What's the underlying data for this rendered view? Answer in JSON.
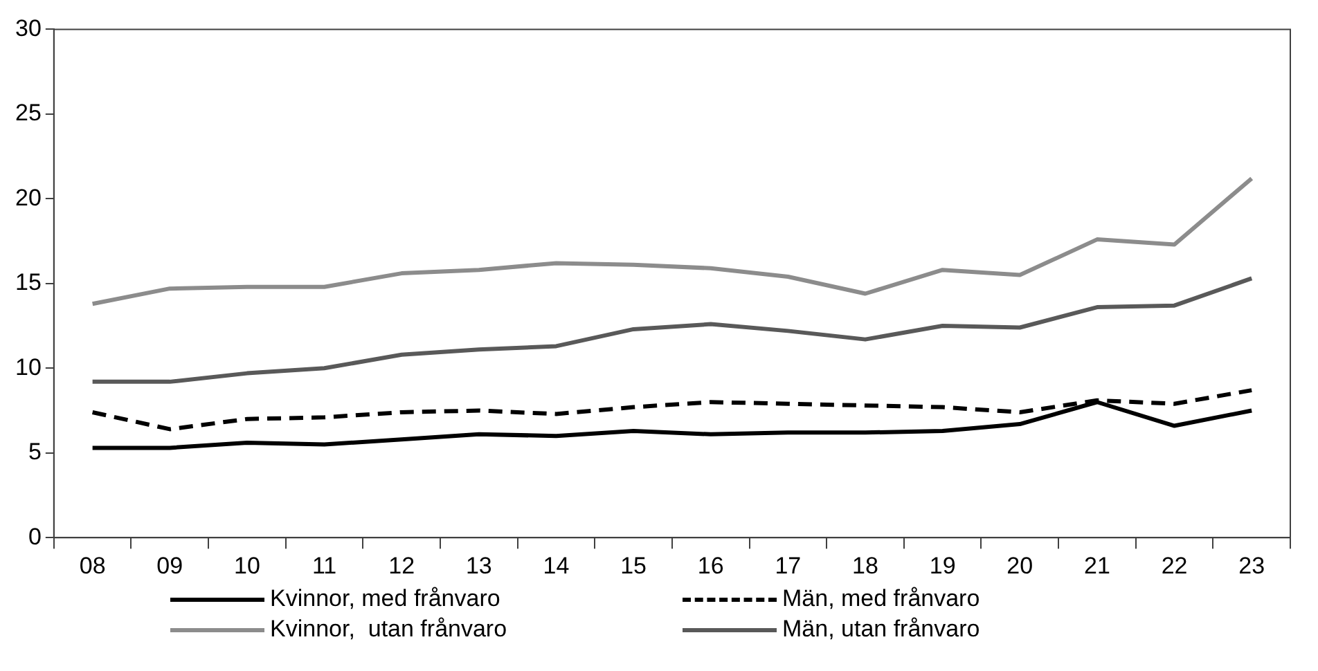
{
  "chart_data": {
    "type": "line",
    "categories": [
      "08",
      "09",
      "10",
      "11",
      "12",
      "13",
      "14",
      "15",
      "16",
      "17",
      "18",
      "19",
      "20",
      "21",
      "22",
      "23"
    ],
    "series": [
      {
        "name": "Kvinnor, med frånvaro",
        "color": "#000000",
        "line_style": "solid",
        "values": [
          5.3,
          5.3,
          5.6,
          5.5,
          5.8,
          6.1,
          6.0,
          6.3,
          6.1,
          6.2,
          6.2,
          6.3,
          6.7,
          8.0,
          6.6,
          7.5
        ]
      },
      {
        "name": "Män, med frånvaro",
        "color": "#000000",
        "line_style": "dashed",
        "values": [
          7.4,
          6.4,
          7.0,
          7.1,
          7.4,
          7.5,
          7.3,
          7.7,
          8.0,
          7.9,
          7.8,
          7.7,
          7.4,
          8.1,
          7.9,
          8.7
        ]
      },
      {
        "name": "Kvinnor,  utan frånvaro",
        "color": "#8c8c8c",
        "line_style": "solid",
        "values": [
          13.8,
          14.7,
          14.8,
          14.8,
          15.6,
          15.8,
          16.2,
          16.1,
          15.9,
          15.4,
          14.4,
          15.8,
          15.5,
          17.6,
          17.3,
          21.2
        ]
      },
      {
        "name": "Män, utan frånvaro",
        "color": "#595959",
        "line_style": "solid",
        "values": [
          9.2,
          9.2,
          9.7,
          10.0,
          10.8,
          11.1,
          11.3,
          12.3,
          12.6,
          12.2,
          11.7,
          12.5,
          12.4,
          13.6,
          13.7,
          15.3
        ]
      }
    ],
    "ylim": [
      0,
      30
    ],
    "yticks": [
      0,
      5,
      10,
      15,
      20,
      25,
      30
    ],
    "legend": "bottom",
    "marker": "none"
  }
}
